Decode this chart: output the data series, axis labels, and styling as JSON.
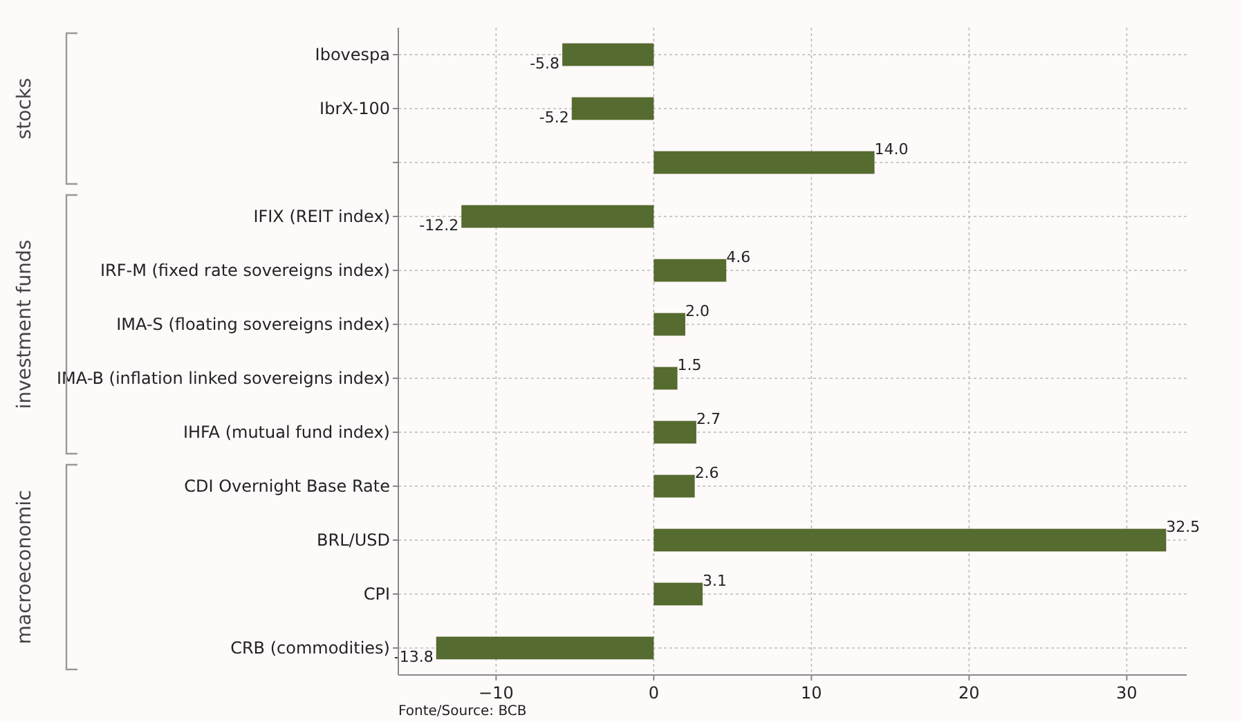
{
  "chart_data": {
    "type": "bar",
    "orientation": "horizontal",
    "categories": [
      "Ibovespa",
      "IbrX-100",
      null,
      "IFIX (REIT index)",
      "IRF-M (fixed rate sovereigns index)",
      "IMA-S (floating sovereigns index)",
      "IMA-B (inflation linked sovereigns index)",
      "IHFA (mutual fund index)",
      "CDI Overnight Base Rate",
      "BRL/USD",
      "CPI",
      "CRB (commodities)"
    ],
    "values": [
      -5.8,
      -5.2,
      14.0,
      -12.2,
      4.6,
      2.0,
      1.5,
      2.7,
      2.6,
      32.5,
      3.1,
      -13.8
    ],
    "color": "#556b2f",
    "xlim": [
      -16.2,
      33.8
    ],
    "xticks": [
      {
        "value": -10,
        "label": "−10"
      },
      0,
      10,
      20,
      30
    ],
    "grid": true,
    "value_labels": [
      "-5.8",
      "-5.2",
      "14.0",
      "-12.2",
      "4.6",
      "2.0",
      "1.5",
      "2.7",
      "2.6",
      "32.5",
      "3.1",
      "-13.8"
    ],
    "annotations": [
      "stocks",
      "investment funds",
      "macroeconomic",
      "Fonte/Source: BCB"
    ]
  }
}
